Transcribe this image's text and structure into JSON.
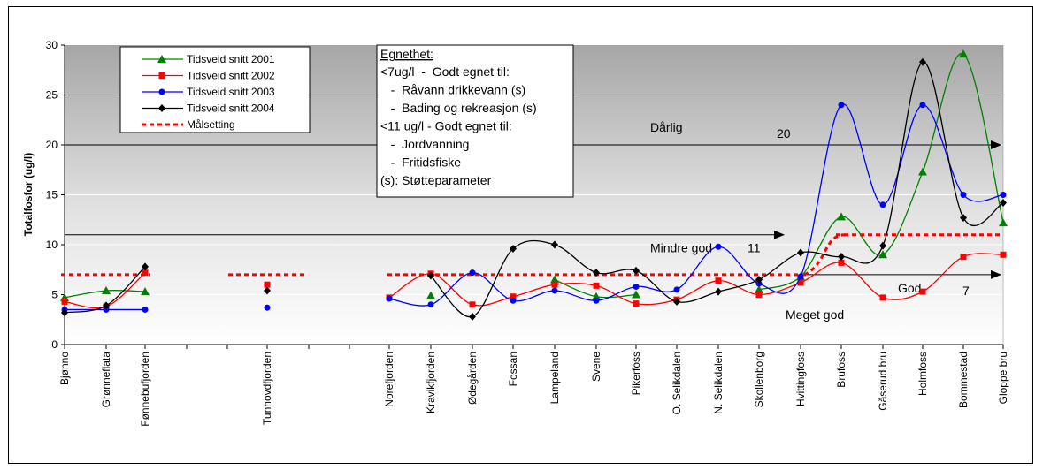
{
  "chart_data": {
    "type": "line",
    "ylabel": "Totalfosfor (ug/l)",
    "xlabel": "",
    "ylim": [
      0,
      30
    ],
    "yticks": [
      0,
      5,
      10,
      15,
      20,
      25,
      30
    ],
    "categories": [
      "Bjønno",
      "Grønneflata",
      "Fønnebufjorden",
      "Tunhovdfjorden",
      "Norefjorden",
      "Kravikfjorden",
      "Ødegården",
      "Fossan",
      "Lampeland",
      "Svene",
      "Pikerfoss",
      "O. Selikdalen",
      "N. Selikdalen",
      "Skollenborg",
      "Hvittingfoss",
      "Brufoss",
      "Gåserud bru",
      "Holmfoss",
      "Bommestad",
      "Gloppe bru"
    ],
    "series": [
      {
        "name": "Tidsveid snitt 2001",
        "color": "#008000",
        "marker": "triangle",
        "values": [
          4.7,
          5.4,
          5.3,
          null,
          null,
          4.9,
          null,
          null,
          6.5,
          4.8,
          5.0,
          null,
          null,
          5.5,
          6.8,
          12.8,
          9.0,
          17.3,
          29.1,
          12.2
        ]
      },
      {
        "name": "Tidsveid snitt 2002",
        "color": "#ff0000",
        "marker": "square",
        "values": [
          4.3,
          3.8,
          7.2,
          6.0,
          4.7,
          7.1,
          4.0,
          4.8,
          6.0,
          5.9,
          4.1,
          4.5,
          6.4,
          5.0,
          6.2,
          8.2,
          4.7,
          5.3,
          8.8,
          9.0
        ]
      },
      {
        "name": "Tidsveid snitt 2003",
        "color": "#0000ff",
        "marker": "circle",
        "values": [
          3.5,
          3.5,
          3.5,
          3.7,
          4.6,
          4.0,
          7.2,
          4.4,
          5.4,
          4.4,
          5.8,
          5.5,
          9.8,
          6.1,
          6.8,
          24.0,
          14.0,
          24.0,
          15.0,
          15.0
        ]
      },
      {
        "name": "Tidsveid snitt 2004",
        "color": "#000000",
        "marker": "diamond",
        "values": [
          3.2,
          3.9,
          7.8,
          5.4,
          null,
          6.9,
          2.8,
          9.6,
          10.0,
          7.2,
          7.4,
          4.3,
          5.3,
          6.5,
          9.2,
          8.8,
          9.9,
          28.3,
          12.7,
          14.2
        ]
      }
    ],
    "target": {
      "name": "Målsetting",
      "color": "#ff0000",
      "segments": [
        {
          "from": 0,
          "to": 2,
          "y": 7
        },
        {
          "from": 3,
          "to": 3,
          "y": 7
        },
        {
          "from": 4,
          "to": 14,
          "y": 7
        },
        {
          "from": 15,
          "to": 19,
          "y": 11
        }
      ]
    },
    "class_lines": [
      {
        "label": "Dårlig",
        "value_label": "20",
        "y": 20
      },
      {
        "label": "Mindre god",
        "value_label": "11",
        "y": 11
      },
      {
        "label": "God",
        "value_label": "7",
        "y": 7
      },
      {
        "label": "Meget god",
        "value_label": "",
        "y": null
      }
    ],
    "info_box": {
      "title": "Egnethet:",
      "lines": [
        "<7ug/l  -  Godt egnet til:",
        "   -  Råvann drikkevann (s)",
        "   -  Bading og rekreasjon (s)",
        "<11 ug/l - Godt egnet til:",
        "   -  Jordvanning",
        "   -  Fritidsfiske",
        "(s): Støtteparameter"
      ]
    }
  }
}
